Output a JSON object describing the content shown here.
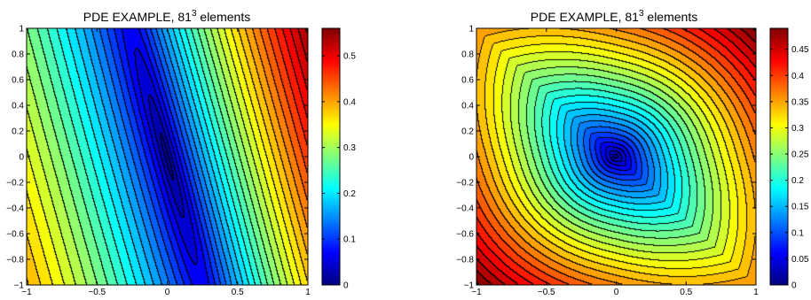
{
  "figure": {
    "panels": [
      {
        "title_main": "PDE EXAMPLE, 81",
        "title_sup": "3",
        "title_tail": " elements"
      },
      {
        "title_main": "PDE EXAMPLE, 81",
        "title_sup": "3",
        "title_tail": " elements"
      }
    ]
  },
  "chart_data": [
    {
      "type": "contour",
      "title": "PDE EXAMPLE, 81³ elements",
      "xlabel": "",
      "ylabel": "",
      "xlim": [
        -1,
        1
      ],
      "ylim": [
        -1,
        1
      ],
      "x_ticks": [
        -1,
        -0.5,
        0,
        0.5,
        1
      ],
      "x_tick_labels": [
        "−1",
        "−0.5",
        "0",
        "0.5",
        "1"
      ],
      "y_ticks": [
        1,
        0.8,
        0.6,
        0.4,
        0.2,
        0,
        -0.2,
        -0.4,
        -0.6,
        -0.8,
        -1
      ],
      "y_tick_labels": [
        "1",
        "0.8",
        "0.6",
        "0.4",
        "0.2",
        "0",
        "−0.2",
        "−0.4",
        "−0.6",
        "−0.8",
        "−1"
      ],
      "colormap": "jet",
      "color_range": [
        0,
        0.56
      ],
      "colorbar_ticks": [
        0,
        0.1,
        0.2,
        0.3,
        0.4,
        0.5
      ],
      "colorbar_tick_labels": [
        "0",
        "0.1",
        "0.2",
        "0.3",
        "0.4",
        "0.5"
      ],
      "minimum_location": [
        0,
        0
      ],
      "minimum_value": 0,
      "field_shape": "narrow elongated well oriented along the direction from (0.25,-1) to (-0.25,1)",
      "colorbar": true,
      "grid": false
    },
    {
      "type": "contour",
      "title": "PDE EXAMPLE, 81³ elements",
      "xlabel": "",
      "ylabel": "",
      "xlim": [
        -1,
        1
      ],
      "ylim": [
        -1,
        1
      ],
      "x_ticks": [
        -1,
        -0.5,
        0,
        0.5,
        1
      ],
      "x_tick_labels": [
        "−1",
        "−0.5",
        "0",
        "0.5",
        "1"
      ],
      "y_ticks": [
        1,
        0.8,
        0.6,
        0.4,
        0.2,
        0,
        -0.2,
        -0.4,
        -0.6,
        -0.8,
        -1
      ],
      "y_tick_labels": [
        "1",
        "0.8",
        "0.6",
        "0.4",
        "0.2",
        "0",
        "−0.2",
        "−0.4",
        "−0.6",
        "−0.8",
        "−1"
      ],
      "colormap": "jet",
      "color_range": [
        0,
        0.49
      ],
      "colorbar_ticks": [
        0,
        0.05,
        0.1,
        0.15,
        0.2,
        0.25,
        0.3,
        0.35,
        0.4,
        0.45
      ],
      "colorbar_tick_labels": [
        "0",
        "0.05",
        "0.1",
        "0.15",
        "0.2",
        "0.25",
        "0.3",
        "0.35",
        "0.4",
        "0.45"
      ],
      "minimum_location": [
        0,
        0
      ],
      "minimum_value": 0,
      "field_shape": "well at origin with rounded-diamond contours skewed along y = -x",
      "colorbar": true,
      "grid": false
    }
  ]
}
